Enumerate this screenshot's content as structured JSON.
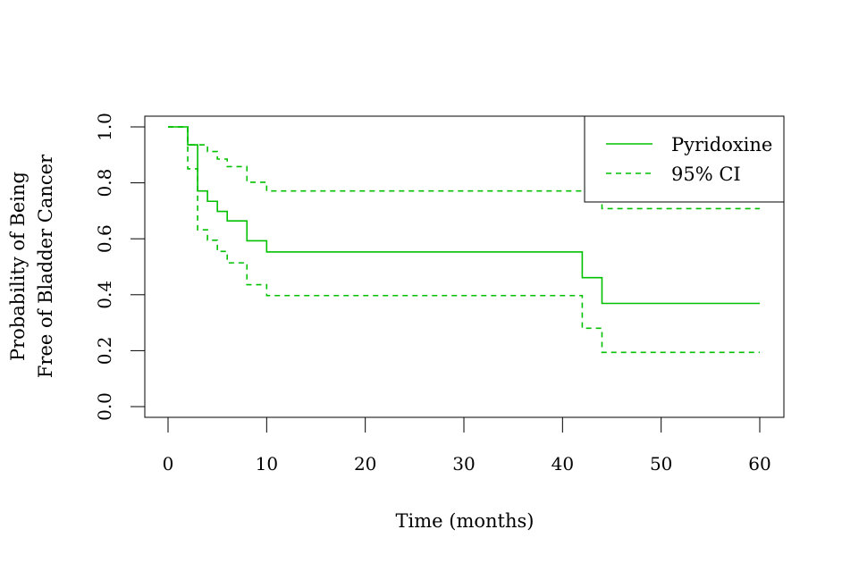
{
  "chart_data": {
    "type": "line",
    "title": "",
    "xlabel": "Time (months)",
    "ylabel_lines": [
      "Probability of Being",
      "Free of Bladder Cancer"
    ],
    "xlim": [
      0,
      60
    ],
    "ylim": [
      0,
      1
    ],
    "x_ticks": [
      0,
      10,
      20,
      30,
      40,
      50,
      60
    ],
    "y_ticks": [
      "0.0",
      "0.2",
      "0.4",
      "0.6",
      "0.8",
      "1.0"
    ],
    "grid": false,
    "legend_position": "top-right",
    "step": true,
    "color": "#00c000",
    "series": [
      {
        "name": "Pyridoxine",
        "style": "solid",
        "x": [
          0,
          2,
          3,
          4,
          5,
          6,
          8,
          10,
          42,
          44,
          60
        ],
        "y": [
          1.0,
          0.936,
          0.771,
          0.734,
          0.698,
          0.664,
          0.593,
          0.553,
          0.461,
          0.369,
          0.369
        ]
      },
      {
        "name": "95% CI",
        "style": "dashed",
        "x": [
          0,
          2,
          3,
          4,
          5,
          6,
          8,
          10,
          42,
          44,
          60
        ],
        "y": [
          1.0,
          0.936,
          0.936,
          0.912,
          0.885,
          0.858,
          0.802,
          0.771,
          0.771,
          0.708,
          0.708
        ]
      },
      {
        "style": "dashed",
        "x": [
          0,
          2,
          3,
          4,
          5,
          6,
          8,
          10,
          42,
          44,
          60
        ],
        "y": [
          1.0,
          0.85,
          0.632,
          0.595,
          0.555,
          0.514,
          0.436,
          0.397,
          0.28,
          0.194,
          0.194
        ]
      }
    ]
  }
}
